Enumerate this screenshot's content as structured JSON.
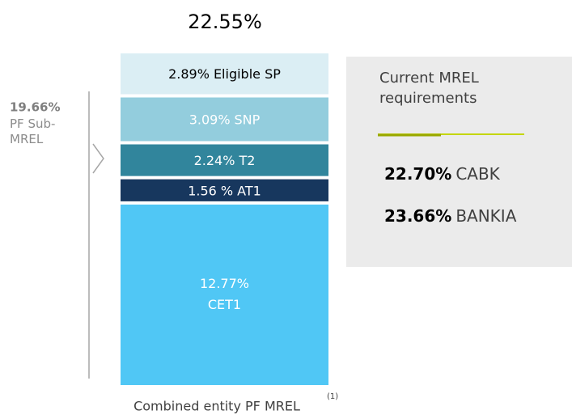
{
  "chart_data": {
    "type": "stacked_bar",
    "total": {
      "value": 22.55,
      "label": "22.55%"
    },
    "xlabel": "Combined entity PF MREL",
    "footnote": "(1)",
    "series": [
      {
        "name": "CET1",
        "color": "#50c7f5",
        "text_color": "#ffffff",
        "values": [
          12.77
        ],
        "value_labels": [
          "12.77%"
        ]
      },
      {
        "name": "AT1",
        "color": "#17375e",
        "text_color": "#ffffff",
        "values": [
          1.56
        ],
        "value_labels": [
          "1.56 %"
        ]
      },
      {
        "name": "T2",
        "color": "#31859c",
        "text_color": "#ffffff",
        "values": [
          2.24
        ],
        "value_labels": [
          "2.24%"
        ]
      },
      {
        "name": "SNP",
        "color": "#93cddd",
        "text_color": "#ffffff",
        "values": [
          3.09
        ],
        "value_labels": [
          "3.09%"
        ]
      },
      {
        "name": "Eligible SP",
        "color": "#dbeef4",
        "text_color": "#000000",
        "values": [
          2.89
        ],
        "value_labels": [
          "2.89%"
        ]
      }
    ],
    "sub_mrel": {
      "value": 19.66,
      "label": "19.66%",
      "text": "PF Sub-MREL"
    },
    "requirements_title": "Current MREL requirements",
    "requirements": [
      {
        "value": 22.7,
        "label": "22.70%",
        "name": "CABK"
      },
      {
        "value": 23.66,
        "label": "23.66%",
        "name": "BANKIA"
      }
    ]
  }
}
